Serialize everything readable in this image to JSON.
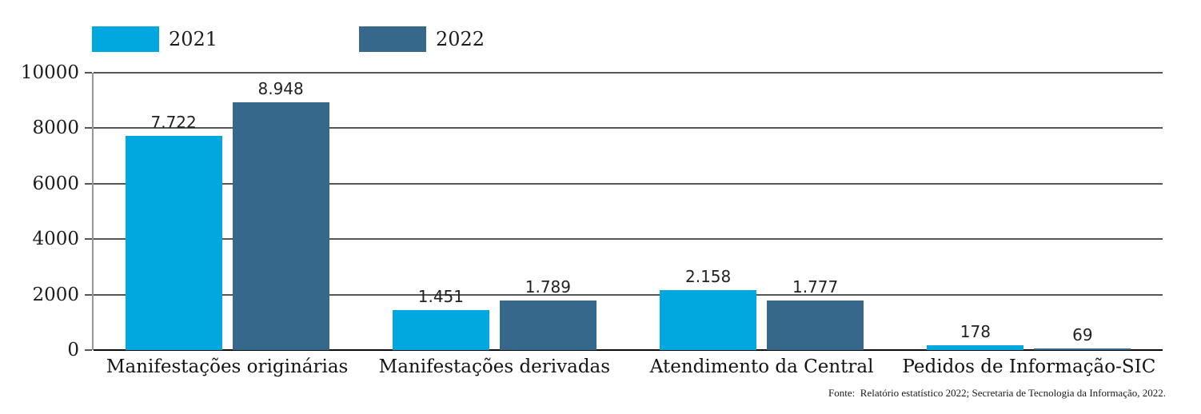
{
  "legend": {
    "items": [
      {
        "label": "2021",
        "color": "#00A8DF"
      },
      {
        "label": "2022",
        "color": "#36688B"
      }
    ]
  },
  "chart_data": {
    "type": "bar",
    "categories": [
      "Manifestações originárias",
      "Manifestações derivadas",
      "Atendimento da Central",
      "Pedidos de Informação-SIC"
    ],
    "series": [
      {
        "name": "2021",
        "color": "#00A8DF",
        "values": [
          7722,
          1451,
          2158,
          178
        ],
        "labels": [
          "7.722",
          "1.451",
          "2.158",
          "178"
        ]
      },
      {
        "name": "2022",
        "color": "#36688B",
        "values": [
          8948,
          1789,
          1777,
          69
        ],
        "labels": [
          "8.948",
          "1.789",
          "1.777",
          "69"
        ]
      }
    ],
    "ylim": [
      0,
      10000
    ],
    "yticks": [
      0,
      2000,
      4000,
      6000,
      8000,
      10000
    ],
    "grid": "horizontal",
    "legend_position": "top-left"
  },
  "footer": {
    "source": "Fonte:  Relatório estatístico 2022; Secretaria de Tecnologia da Informação, 2022."
  }
}
